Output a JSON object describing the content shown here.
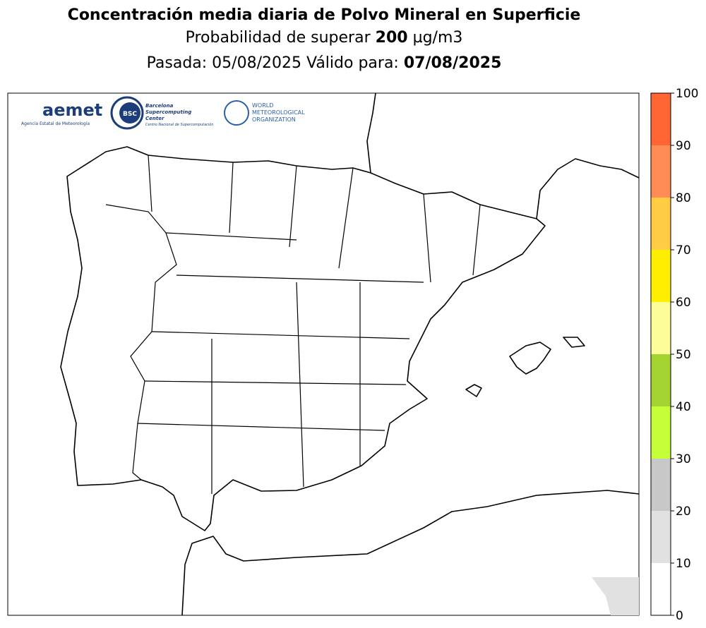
{
  "header": {
    "title": "Concentración media diaria de Polvo Mineral en Superficie",
    "subtitle": {
      "prefix": "Probabilidad de superar",
      "threshold": "200",
      "unit": "µg/m3"
    },
    "run_line": {
      "run_label": "Pasada:",
      "run_date": "05/08/2025",
      "valid_label": "Válido para:",
      "valid_date": "07/08/2025"
    }
  },
  "logos": {
    "aemet": "aemet",
    "aemet_sub": "Agencia Estatal de Meteorología",
    "bsc": "BSC",
    "bsc_name": [
      "Barcelona",
      "Supercomputing",
      "Center"
    ],
    "bsc_sub": "Centro Nacional de Supercomputación",
    "wmo": [
      "WORLD",
      "METEOROLOGICAL",
      "ORGANIZATION"
    ]
  },
  "colorbar": {
    "lim": [
      0,
      100
    ],
    "ticks": [
      0,
      10,
      20,
      30,
      40,
      50,
      60,
      70,
      80,
      90,
      100
    ],
    "colors": [
      "#ffffff",
      "#e1e1e1",
      "#c8c8c8",
      "#c4ff3a",
      "#a4d432",
      "#fdfd9a",
      "#ffee00",
      "#ffcc44",
      "#ff8c55",
      "#ff6633"
    ]
  }
}
